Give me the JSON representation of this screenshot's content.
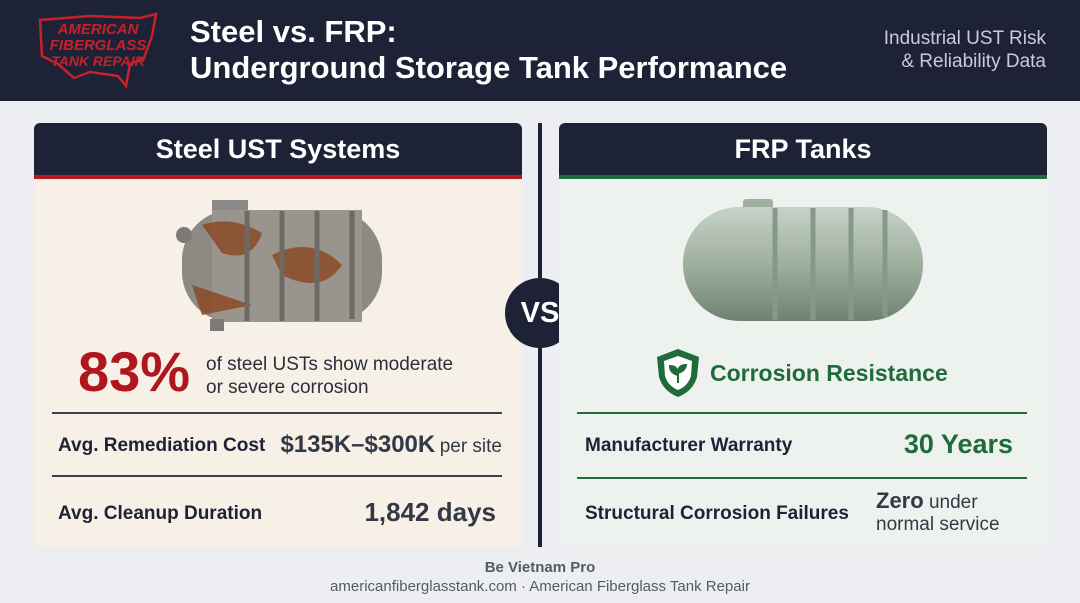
{
  "header": {
    "logo": [
      "AMERICAN",
      "FIBERGLASS",
      "TANK REPAIR"
    ],
    "title": [
      "Steel vs. FRP:",
      "Underground Storage Tank Performance"
    ],
    "subtitle": [
      "Industrial UST Risk",
      "& Reliability Data"
    ]
  },
  "steel": {
    "title": "Steel UST Systems",
    "stat": "83%",
    "stat_text": [
      "of steel USTs show moderate",
      "or severe corrosion"
    ],
    "rows": [
      {
        "label": "Avg. Remediation Cost",
        "value": "$135K–$300K",
        "suffix": "per site"
      },
      {
        "label": "Avg. Cleanup Duration",
        "value": "1,842 days"
      }
    ]
  },
  "vs": "VS",
  "frp": {
    "title": "FRP Tanks",
    "badge": "Corrosion Resistance",
    "rows": [
      {
        "label": "Manufacturer Warranty",
        "value": "30 Years"
      },
      {
        "label": "Structural Corrosion Failures",
        "value": "Zero",
        "suffix": [
          "under",
          "normal service"
        ]
      }
    ]
  },
  "footer": {
    "font_note": "Be Vietnam Pro",
    "credit": "americanfiberglasstank.com · American Fiberglass Tank Repair"
  }
}
